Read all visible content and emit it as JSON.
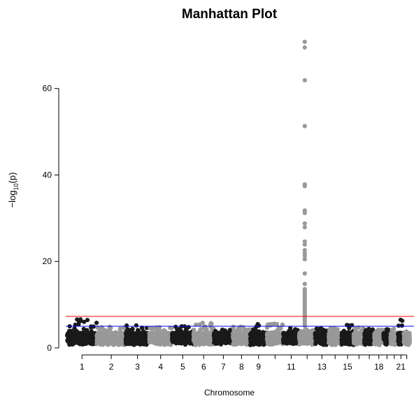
{
  "chart_data": {
    "type": "scatter",
    "title": "Manhattan Plot",
    "xlabel": "Chromosome",
    "ylabel_prefix": "−log",
    "ylabel_sub": "10",
    "ylabel_suffix": "(p)",
    "ylim": [
      0,
      74
    ],
    "yticks": [
      0,
      20,
      40,
      60
    ],
    "suggestive_line": {
      "value": 5,
      "color": "#0000ff"
    },
    "genomewide_line": {
      "value": 7.3,
      "color": "#ff0000"
    },
    "colors": [
      "#1a1a1a",
      "#999999"
    ],
    "xtick_labels": [
      "1",
      "2",
      "3",
      "4",
      "5",
      "6",
      "7",
      "8",
      "9",
      "11",
      "13",
      "15",
      "18",
      "21"
    ],
    "chromosomes": [
      {
        "chr": "1",
        "length": 249,
        "max": 6.6
      },
      {
        "chr": "2",
        "length": 243,
        "max": 4.9
      },
      {
        "chr": "3",
        "length": 198,
        "max": 5.2
      },
      {
        "chr": "4",
        "length": 191,
        "max": 4.8
      },
      {
        "chr": "5",
        "length": 181,
        "max": 5.0
      },
      {
        "chr": "6",
        "length": 171,
        "max": 5.8
      },
      {
        "chr": "7",
        "length": 159,
        "max": 4.2
      },
      {
        "chr": "8",
        "length": 146,
        "max": 4.9
      },
      {
        "chr": "9",
        "length": 141,
        "max": 5.5
      },
      {
        "chr": "10",
        "length": 136,
        "max": 5.6
      },
      {
        "chr": "11",
        "length": 135,
        "max": 4.6
      },
      {
        "chr": "12",
        "length": 133,
        "max": 4.3,
        "peak": [
          70.8,
          69.5,
          61.9,
          51.3,
          37.8,
          37.4,
          31.8,
          31.2,
          28.8,
          27.9,
          24.6,
          23.9,
          22.6,
          21.9,
          21.3,
          20.5,
          17.2,
          14.8,
          13.6,
          13.1,
          12.5,
          12.0,
          11.5,
          11.0,
          10.6,
          10.1,
          9.6,
          9.1,
          8.6,
          8.1,
          7.6,
          7.1,
          6.6,
          6.1,
          5.6,
          5.1
        ]
      },
      {
        "chr": "13",
        "length": 115,
        "max": 4.5
      },
      {
        "chr": "14",
        "length": 107,
        "max": 4.6
      },
      {
        "chr": "15",
        "length": 102,
        "max": 5.3
      },
      {
        "chr": "16",
        "length": 90,
        "max": 4.7
      },
      {
        "chr": "17",
        "length": 83,
        "max": 4.4
      },
      {
        "chr": "18",
        "length": 78,
        "max": 4.2
      },
      {
        "chr": "19",
        "length": 59,
        "max": 4.3
      },
      {
        "chr": "20",
        "length": 63,
        "max": 4.4
      },
      {
        "chr": "21",
        "length": 48,
        "max": 6.5
      },
      {
        "chr": "22",
        "length": 51,
        "max": 3.8
      }
    ]
  }
}
